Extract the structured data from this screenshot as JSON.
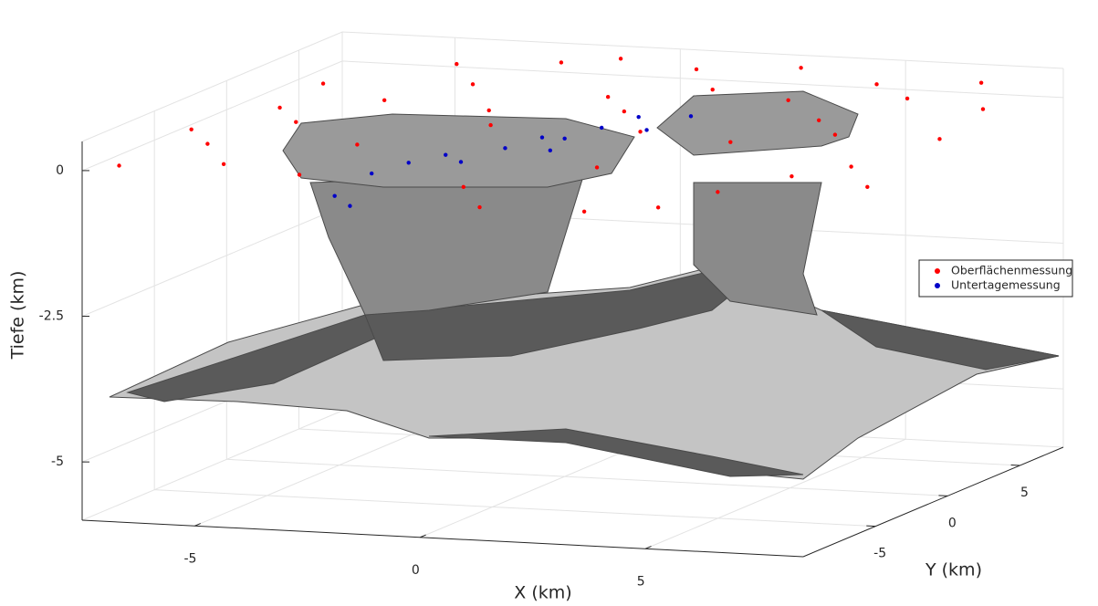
{
  "chart_data": {
    "type": "scatter3d",
    "x_label": "X (km)",
    "y_label": "Y (km)",
    "z_label": "Tiefe (km)",
    "xlim": [
      -7.5,
      8.5
    ],
    "ylim": [
      -10,
      8
    ],
    "zlim": [
      -6,
      0.5
    ],
    "xticks": [
      -5,
      0,
      5
    ],
    "yticks": [
      -5,
      0,
      5
    ],
    "zticks": [
      -5,
      -2.5,
      0
    ],
    "grid": true,
    "legend": "right",
    "series": [
      {
        "name": "Oberflächenmessung",
        "color": "#ff0000",
        "x": [
          -7,
          -6,
          -5,
          -4,
          -3,
          -2,
          -5,
          -3,
          -1,
          1,
          2,
          3,
          0,
          2,
          4,
          5,
          6,
          7,
          3,
          5,
          7,
          8,
          8,
          -6,
          -4,
          -1,
          1,
          4,
          6,
          -2,
          0,
          -7,
          -6,
          1,
          4,
          6,
          -3,
          2,
          5,
          8
        ],
        "y": [
          -9,
          -6,
          -3,
          0,
          3,
          6,
          -8,
          -5,
          -2,
          1,
          4,
          7,
          -7,
          -4,
          -1,
          2,
          5,
          7,
          -8,
          -5,
          -2,
          1,
          4,
          2,
          5,
          7,
          -9,
          -6,
          -3,
          1,
          3,
          -4,
          -1,
          6,
          3,
          0,
          -9,
          -1,
          6,
          -4
        ],
        "z": [
          0,
          0.1,
          0.2,
          0.3,
          0.3,
          0.4,
          0,
          0.1,
          0.2,
          0.2,
          0.3,
          0.4,
          -0.3,
          -0.2,
          0,
          0.1,
          0.2,
          0.3,
          -0.5,
          -0.4,
          -0.2,
          0,
          0.2,
          0.3,
          0.4,
          0.4,
          -0.4,
          -0.6,
          -0.3,
          0.1,
          0.2,
          0.1,
          0.2,
          0.4,
          0.3,
          0.1,
          0,
          0.1,
          0.3,
          -0.3
        ]
      },
      {
        "name": "Untertagemessung",
        "color": "#0000c8",
        "x": [
          -3,
          -2.5,
          -2,
          -1,
          0,
          0.5,
          1,
          -3.5,
          -3,
          -1.5,
          0,
          1.5,
          2,
          -0.5
        ],
        "y": [
          -4,
          -3,
          -2,
          -1,
          0,
          1,
          2,
          -5,
          -5.5,
          -2.5,
          -1,
          1,
          2.5,
          0
        ],
        "z": [
          -0.5,
          -0.4,
          -0.35,
          -0.3,
          -0.2,
          -0.1,
          0,
          -0.8,
          -0.9,
          -0.4,
          -0.3,
          -0.1,
          0,
          -0.2
        ]
      }
    ]
  }
}
